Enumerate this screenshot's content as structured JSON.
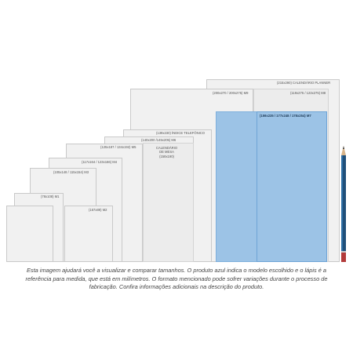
{
  "labels": {
    "planner": "(215x290) CALENDÁRIO PLANNER",
    "m9": "(200x270 / 200x275) M9",
    "m8": "(119x275 / 123x275) M8",
    "m7": "(159x235 / 177x248 / 178x254) M7",
    "indice": "(139x230) ÍNDICE TELEFÔNICO",
    "m6": "(140x200 /145x205) M6",
    "mesa_title": "CALENDÁRIO\nDE MESA",
    "mesa_size": "(158x190)",
    "m5": "(125x187 / 134x192) M5",
    "m4": "(117x164 / 123x166) M4",
    "m3": "(105x148 / 115x154) M3",
    "m1": "(78x108) M1",
    "m2": "(167x89) M2"
  },
  "description": "Esta imagem ajudará você a visualizar e comparar tamanhos. O produto azul indica o modelo escolhido e o lápis é a referência para medida, que está em milímetros. O formato mencionado pode sofrer variações durante o processo de fabricação. Confira informações adicionais na descrição do produto.",
  "colors": {
    "selected": "#9cc3e6",
    "pencil_body": "#1f4f7a",
    "pencil_end": "#b23a3a"
  }
}
